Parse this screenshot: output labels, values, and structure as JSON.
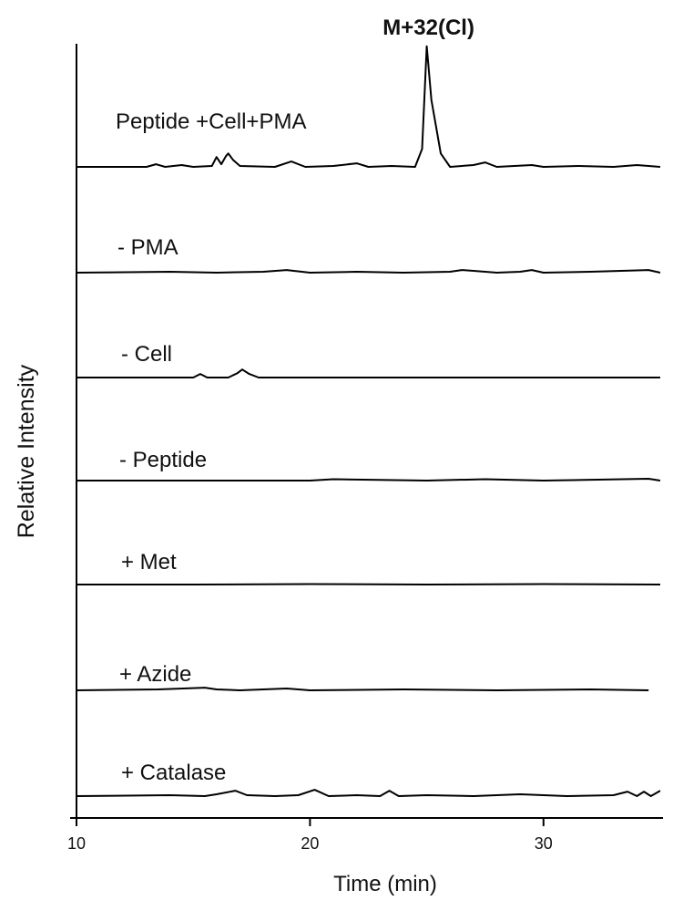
{
  "chart_data": {
    "type": "line",
    "xlabel": "Time (min)",
    "ylabel": "Relative Intensity",
    "xlim": [
      10,
      35
    ],
    "xticks": [
      10,
      20,
      30
    ],
    "grid": false,
    "legend": "none",
    "annotations": [
      {
        "text": "M+32(Cl)",
        "x": 25.0,
        "series": "Peptide +Cell+PMA"
      }
    ],
    "series": [
      {
        "name": "Peptide +Cell+PMA",
        "x": [
          10,
          13.0,
          13.4,
          13.8,
          14.5,
          15.0,
          15.8,
          16.0,
          16.2,
          16.4,
          16.5,
          16.7,
          17.0,
          18.5,
          19.2,
          19.8,
          21.0,
          22.0,
          22.5,
          23.5,
          24.5,
          24.8,
          25.0,
          25.2,
          25.6,
          26.0,
          27.0,
          27.5,
          28.0,
          29.5,
          30.0,
          31.5,
          33.0,
          34.0,
          35.0
        ],
        "y": [
          0,
          0,
          3,
          0,
          2,
          0,
          1,
          11,
          3,
          12,
          15,
          8,
          1,
          0,
          6,
          0,
          1,
          4,
          0,
          1,
          0,
          20,
          135,
          75,
          15,
          0,
          2,
          5,
          0,
          2,
          0,
          1,
          0,
          2,
          0
        ]
      },
      {
        "name": "- PMA",
        "x": [
          10,
          14.0,
          16.0,
          18.0,
          19.0,
          20.0,
          22.0,
          24.0,
          26.0,
          26.5,
          27.0,
          28.0,
          29.0,
          29.5,
          30.0,
          32.0,
          34.5,
          35.0
        ],
        "y": [
          0,
          1,
          0,
          1,
          3,
          0,
          1,
          0,
          1,
          3,
          2,
          0,
          1,
          3,
          0,
          1,
          3,
          0
        ]
      },
      {
        "name": "- Cell",
        "x": [
          10,
          15.0,
          15.3,
          15.6,
          16.5,
          16.9,
          17.1,
          17.4,
          17.8,
          20.0,
          25.0,
          30.0,
          35.0
        ],
        "y": [
          0,
          0,
          4,
          0,
          0,
          5,
          9,
          4,
          0,
          0,
          0,
          0,
          0
        ]
      },
      {
        "name": "- Peptide",
        "x": [
          10,
          15.0,
          20.0,
          21.0,
          25.0,
          27.5,
          30.0,
          34.5,
          35.0
        ],
        "y": [
          0,
          0,
          0,
          1.5,
          0,
          1.5,
          0,
          2,
          0
        ]
      },
      {
        "name": "+ Met",
        "x": [
          10,
          15.0,
          20.0,
          25.0,
          30.0,
          35.0
        ],
        "y": [
          0,
          0,
          0.5,
          0,
          0.5,
          0
        ]
      },
      {
        "name": "+ Azide",
        "x": [
          10,
          13.5,
          15.5,
          16.0,
          17.0,
          19.0,
          20.0,
          24.0,
          28.0,
          32.0,
          34.5
        ],
        "y": [
          0,
          1,
          3,
          1,
          0,
          2,
          0,
          1,
          0,
          1,
          0
        ]
      },
      {
        "name": "+ Catalase",
        "x": [
          10,
          14.0,
          15.5,
          16.0,
          16.8,
          17.3,
          18.5,
          19.5,
          20.2,
          20.8,
          22.0,
          23.0,
          23.4,
          23.8,
          25.0,
          27.0,
          29.0,
          31.0,
          33.0,
          33.6,
          34.0,
          34.3,
          34.6,
          35.0
        ],
        "y": [
          0,
          1,
          0,
          2,
          6,
          1,
          0,
          1,
          7,
          0,
          1,
          0,
          6,
          0,
          1,
          0,
          2,
          0,
          1,
          5,
          0,
          5,
          0,
          6
        ]
      }
    ]
  }
}
